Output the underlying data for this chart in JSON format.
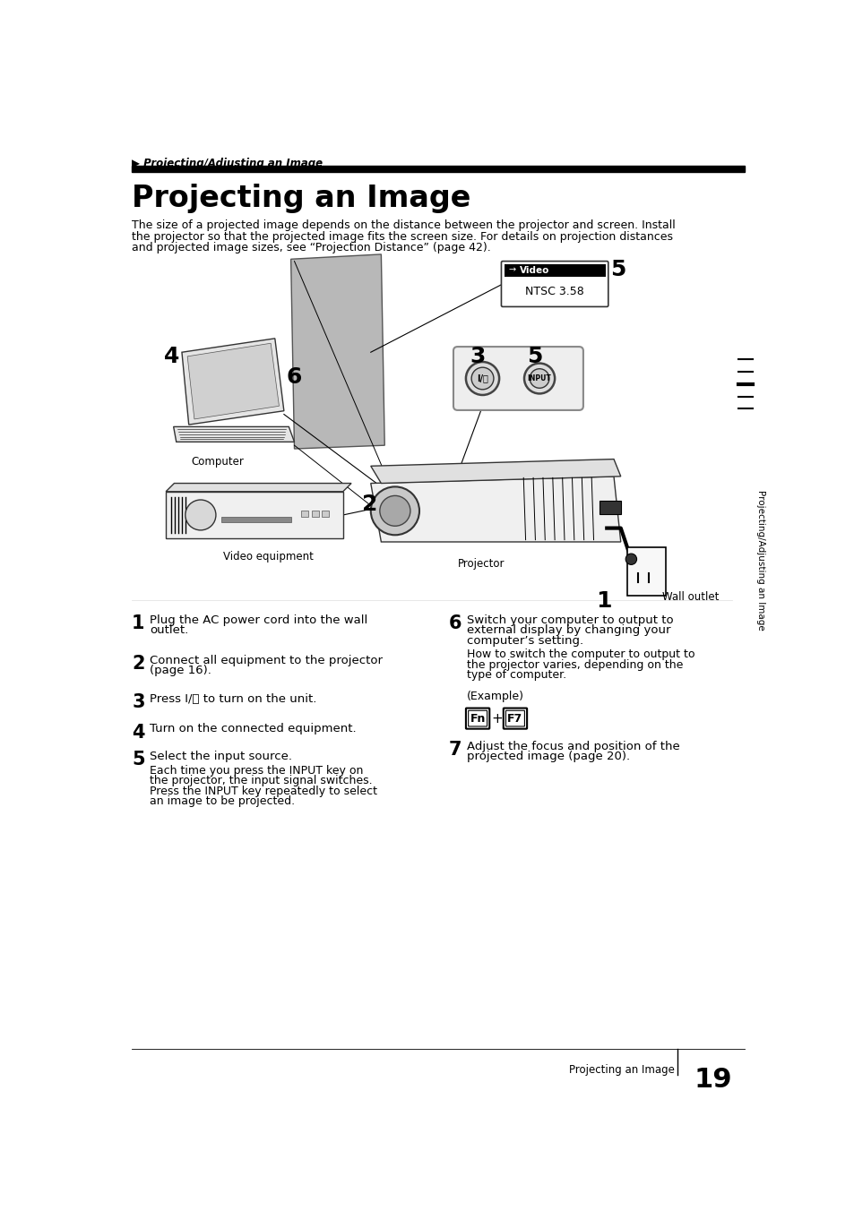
{
  "page_title_small": "▶ Projecting/Adjusting an Image",
  "page_title_large": "Projecting an Image",
  "intro_text_lines": [
    "The size of a projected image depends on the distance between the projector and screen. Install",
    "the projector so that the projected image fits the screen size. For details on projection distances",
    "and projected image sizes, see “Projection Distance” (page 42)."
  ],
  "sidebar_text": "Projecting/Adjusting an Image",
  "page_number": "19",
  "page_label": "Projecting an Image",
  "left_steps": [
    {
      "num": "1",
      "bold_lines": [
        "Plug the AC power cord into the wall",
        "outlet."
      ],
      "extra_lines": []
    },
    {
      "num": "2",
      "bold_lines": [
        "Connect all equipment to the projector",
        "(page 16)."
      ],
      "extra_lines": []
    },
    {
      "num": "3",
      "bold_lines": [
        "Press I/⏻ to turn on the unit."
      ],
      "extra_lines": []
    },
    {
      "num": "4",
      "bold_lines": [
        "Turn on the connected equipment."
      ],
      "extra_lines": []
    },
    {
      "num": "5",
      "bold_lines": [
        "Select the input source."
      ],
      "extra_lines": [
        "Each time you press the INPUT key on",
        "the projector, the input signal switches.",
        "Press the INPUT key repeatedly to select",
        "an image to be projected."
      ]
    }
  ],
  "right_steps": [
    {
      "num": "6",
      "bold_lines": [
        "Switch your computer to output to",
        "external display by changing your",
        "computer’s setting."
      ],
      "extra_lines": [
        "How to switch the computer to output to",
        "the projector varies, depending on the",
        "type of computer.",
        "",
        "(Example)"
      ],
      "has_keys": true
    },
    {
      "num": "7",
      "bold_lines": [
        "Adjust the focus and position of the",
        "projected image (page 20)."
      ],
      "extra_lines": [],
      "has_keys": false
    }
  ],
  "bg_color": "#ffffff",
  "text_color": "#000000",
  "header_bar_color": "#000000"
}
